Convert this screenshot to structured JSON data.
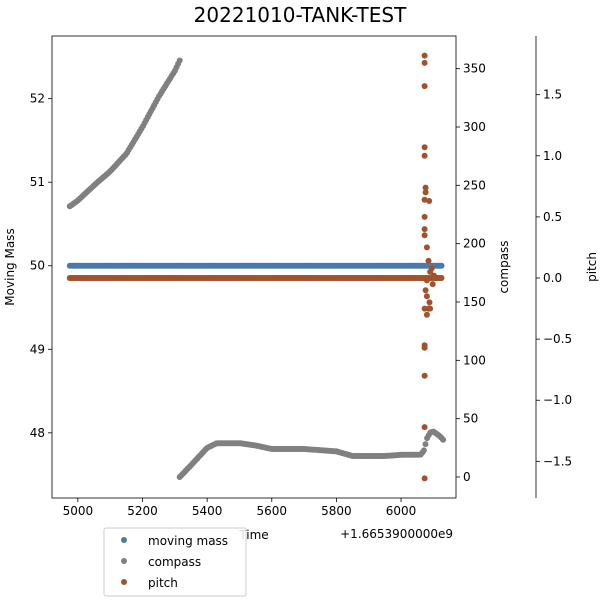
{
  "chart_data": {
    "type": "scatter",
    "title": "20221010-TANK-TEST",
    "xlabel": "Time",
    "x_offset_label": "+1.6653900000e9",
    "x_ticks": [
      5000,
      5200,
      5400,
      5600,
      5800,
      6000
    ],
    "xlim": [
      4920,
      6170
    ],
    "axes": {
      "left": {
        "label": "Moving Mass",
        "ylim": [
          47.22,
          52.75
        ],
        "ticks": [
          48,
          49,
          50,
          51,
          52
        ]
      },
      "right": {
        "label": "compass",
        "ylim": [
          -18,
          378
        ],
        "ticks": [
          0,
          50,
          100,
          150,
          200,
          250,
          300,
          350
        ]
      },
      "far_right": {
        "label": "pitch",
        "ylim": [
          -1.8,
          1.98
        ],
        "ticks": [
          -1.5,
          -1.0,
          -0.5,
          0.0,
          0.5,
          1.0,
          1.5
        ],
        "tick_labels": [
          "−1.5",
          "−1.0",
          "−0.5",
          "0.0",
          "0.5",
          "1.0",
          "1.5"
        ]
      }
    },
    "legend": {
      "placement": "lower-left, below axes",
      "entries": [
        "moving mass",
        "compass",
        "pitch"
      ]
    },
    "series": [
      {
        "name": "moving mass",
        "axis": "left",
        "color": "#4a7aab",
        "segments": [
          {
            "x": [
              4975,
              6125
            ],
            "y": [
              50.0,
              50.0
            ]
          }
        ]
      },
      {
        "name": "compass",
        "axis": "right",
        "color": "#808080",
        "segments": [
          {
            "x": [
              4975,
              5000,
              5050,
              5100,
              5150,
              5200,
              5250,
              5300,
              5315
            ],
            "y": [
              232,
              237,
              250,
              262,
              277,
              300,
              326,
              348,
              357
            ]
          },
          {
            "x": [
              5315,
              5350,
              5400,
              5430,
              5470,
              5500,
              5550,
              5600,
              5650,
              5700,
              5750,
              5800,
              5850,
              5900,
              5950,
              6000,
              6050,
              6060,
              6070,
              6080,
              6090,
              6100,
              6120,
              6130
            ],
            "y": [
              0,
              10,
              25,
              29,
              29,
              29,
              27,
              24,
              24,
              24,
              23,
              22,
              18,
              18,
              18,
              19,
              19,
              19,
              22,
              33,
              38,
              39,
              35,
              32
            ]
          }
        ]
      },
      {
        "name": "pitch",
        "axis": "far_right",
        "color": "#a0522d",
        "segments": [
          {
            "x": [
              4975,
              6125
            ],
            "y": [
              0.0,
              0.0
            ]
          }
        ],
        "points": [
          {
            "x": 6073,
            "y": 1.82
          },
          {
            "x": 6073,
            "y": 1.76
          },
          {
            "x": 6073,
            "y": 1.57
          },
          {
            "x": 6073,
            "y": 1.07
          },
          {
            "x": 6073,
            "y": 1.0
          },
          {
            "x": 6076,
            "y": 0.74
          },
          {
            "x": 6076,
            "y": 0.7
          },
          {
            "x": 6087,
            "y": 0.63
          },
          {
            "x": 6073,
            "y": 0.64
          },
          {
            "x": 6073,
            "y": 0.5
          },
          {
            "x": 6073,
            "y": 0.4
          },
          {
            "x": 6073,
            "y": 0.35
          },
          {
            "x": 6080,
            "y": 0.25
          },
          {
            "x": 6085,
            "y": 0.14
          },
          {
            "x": 6095,
            "y": 0.08
          },
          {
            "x": 6090,
            "y": 0.05
          },
          {
            "x": 6080,
            "y": -0.02
          },
          {
            "x": 6076,
            "y": -0.1
          },
          {
            "x": 6080,
            "y": -0.15
          },
          {
            "x": 6088,
            "y": -0.2
          },
          {
            "x": 6073,
            "y": -0.25
          },
          {
            "x": 6085,
            "y": -0.25
          },
          {
            "x": 6090,
            "y": -0.25
          },
          {
            "x": 6080,
            "y": -0.3
          },
          {
            "x": 6073,
            "y": -0.55
          },
          {
            "x": 6073,
            "y": -0.57
          },
          {
            "x": 6073,
            "y": -0.8
          },
          {
            "x": 6073,
            "y": -1.22
          },
          {
            "x": 6073,
            "y": -1.64
          },
          {
            "x": 6098,
            "y": -0.05
          },
          {
            "x": 6102,
            "y": 0.02
          },
          {
            "x": 6110,
            "y": 0.0
          }
        ]
      }
    ]
  }
}
